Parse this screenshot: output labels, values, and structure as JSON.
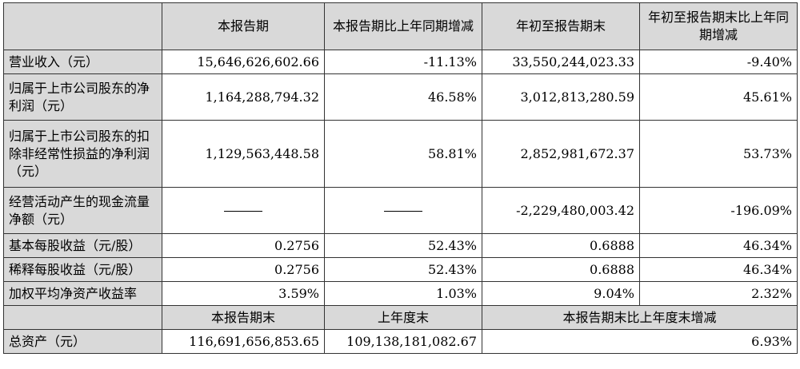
{
  "table": {
    "header": [
      "",
      "本报告期",
      "本报告期比上年同期增减",
      "年初至报告期末",
      "年初至报告期末比上年同期增减"
    ],
    "rows": [
      {
        "label": "营业收入（元）",
        "c1": "15,646,626,602.66",
        "c2": "-11.13%",
        "c3": "33,550,244,023.33",
        "c4": "-9.40%"
      },
      {
        "label": "归属于上市公司股东的净利润（元）",
        "c1": "1,164,288,794.32",
        "c2": "46.58%",
        "c3": "3,012,813,280.59",
        "c4": "45.61%"
      },
      {
        "label": "归属于上市公司股东的扣除非经常性损益的净利润（元）",
        "c1": "1,129,563,448.58",
        "c2": "58.81%",
        "c3": "2,852,981,672.37",
        "c4": "53.73%"
      },
      {
        "label": "经营活动产生的现金流量净额（元）",
        "c1": "——",
        "c2": "——",
        "c3": "-2,229,480,003.42",
        "c4": "-196.09%"
      },
      {
        "label": "基本每股收益（元/股）",
        "c1": "0.2756",
        "c2": "52.43%",
        "c3": "0.6888",
        "c4": "46.34%"
      },
      {
        "label": "稀释每股收益（元/股）",
        "c1": "0.2756",
        "c2": "52.43%",
        "c3": "0.6888",
        "c4": "46.34%"
      },
      {
        "label": "加权平均净资产收益率",
        "c1": "3.59%",
        "c2": "1.03%",
        "c3": "9.04%",
        "c4": "2.32%"
      }
    ],
    "header2": [
      "",
      "本报告期末",
      "上年度末",
      "本报告期末比上年度末增减"
    ],
    "assets": {
      "label": "总资产（元）",
      "c1": "116,691,656,853.65",
      "c2": "109,138,181,082.67",
      "c3": "6.93%"
    }
  }
}
